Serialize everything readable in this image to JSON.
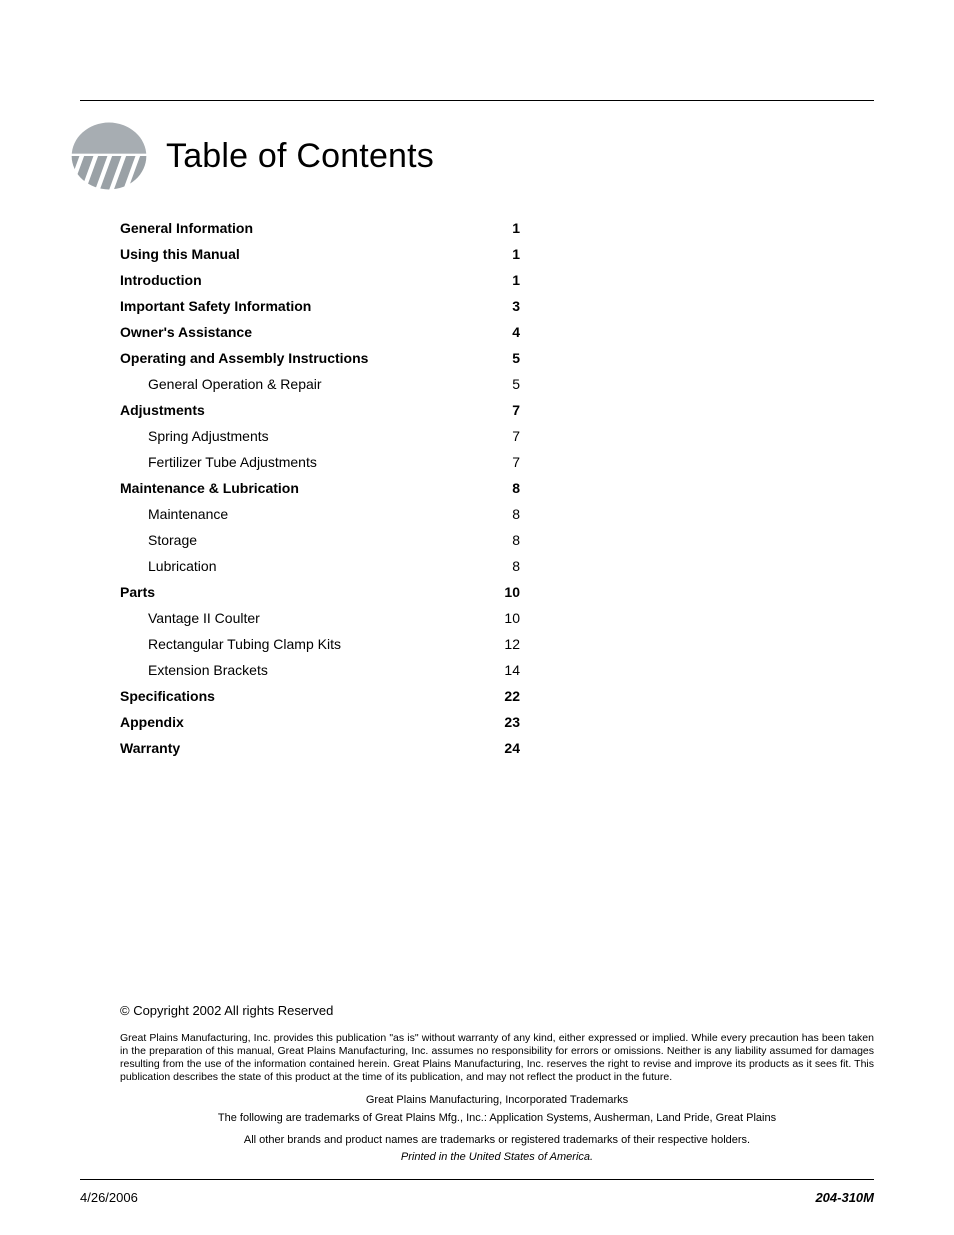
{
  "title": "Table of Contents",
  "toc": [
    {
      "label": "General Information",
      "page": "1",
      "level": 0
    },
    {
      "label": "Using this Manual",
      "page": "1",
      "level": 0
    },
    {
      "label": "Introduction",
      "page": "1",
      "level": 0
    },
    {
      "label": "Important Safety Information",
      "page": "3",
      "level": 0
    },
    {
      "label": "Owner's Assistance",
      "page": "4",
      "level": 0
    },
    {
      "label": "Operating and Assembly Instructions",
      "page": "5",
      "level": 0
    },
    {
      "label": "General Operation & Repair",
      "page": "5",
      "level": 1
    },
    {
      "label": "Adjustments",
      "page": "7",
      "level": 0
    },
    {
      "label": "Spring Adjustments",
      "page": "7",
      "level": 1
    },
    {
      "label": "Fertilizer Tube Adjustments",
      "page": "7",
      "level": 1
    },
    {
      "label": "Maintenance & Lubrication",
      "page": "8",
      "level": 0
    },
    {
      "label": "Maintenance",
      "page": "8",
      "level": 1
    },
    {
      "label": "Storage",
      "page": "8",
      "level": 1
    },
    {
      "label": "Lubrication",
      "page": "8",
      "level": 1
    },
    {
      "label": "Parts",
      "page": "10",
      "level": 0
    },
    {
      "label": "Vantage II Coulter",
      "page": "10",
      "level": 1
    },
    {
      "label": "Rectangular Tubing Clamp Kits",
      "page": "12",
      "level": 1
    },
    {
      "label": "Extension Brackets",
      "page": "14",
      "level": 1
    },
    {
      "label": "Specifications",
      "page": "22",
      "level": 0
    },
    {
      "label": "Appendix",
      "page": "23",
      "level": 0
    },
    {
      "label": "Warranty",
      "page": "24",
      "level": 0
    }
  ],
  "footer": {
    "copyright": "© Copyright 2002 All rights Reserved",
    "disclaimer": "Great Plains Manufacturing, Inc. provides this publication \"as is\" without warranty of any kind, either expressed or implied. While every precaution has been taken in the preparation of this manual, Great Plains Manufacturing, Inc. assumes no responsibility for errors or omissions. Neither is any liability assumed for damages resulting from the use of the information contained herein. Great Plains Manufacturing, Inc. reserves the right to revise and improve its products as it sees fit. This publication describes the state of this product at the time of its publication, and may not reflect the product in the future.",
    "trademark_heading": "Great Plains Manufacturing, Incorporated Trademarks",
    "trademark_line": "The following are trademarks of Great Plains Mfg., Inc.: Application Systems, Ausherman, Land Pride, Great Plains",
    "other_brands": "All other brands and product names are trademarks or registered trademarks of their respective holders.",
    "printed": "Printed in the United States of America."
  },
  "bottom": {
    "date": "4/26/2006",
    "docnum": "204-310M"
  },
  "colors": {
    "text": "#000000",
    "background": "#ffffff",
    "logo_fill": "#9ba3a8"
  },
  "typography": {
    "title_fontsize": 34,
    "toc_fontsize": 14,
    "footer_small": 10.5,
    "bottom_fontsize": 13
  }
}
